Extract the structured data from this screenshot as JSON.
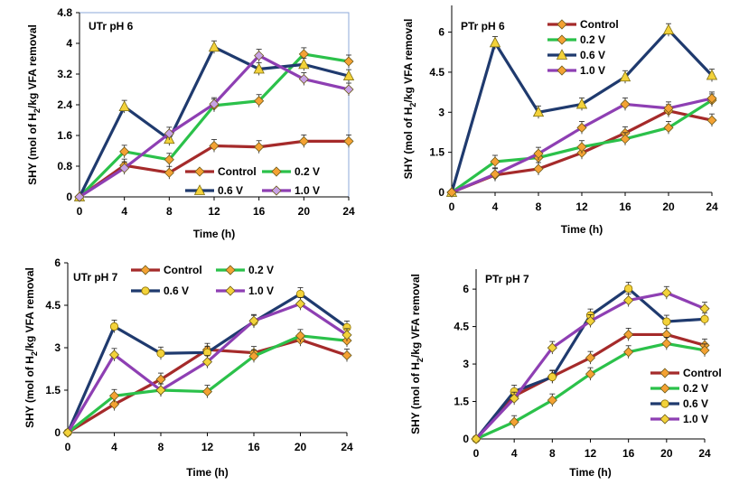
{
  "colors": {
    "Control": "#A52A2A",
    "0.2 V": "#2BC14A",
    "0.6 V": "#1F3A6E",
    "1.0 V": "#8E3FB3",
    "marker_orange": "#F4A233",
    "marker_yellow": "#F3D23A",
    "marker_violet": "#C7A2E6"
  },
  "chart_data": [
    {
      "type": "line",
      "title": "UTr pH 6",
      "xlabel": "Time (h)",
      "ylabel": "SHY (mol of H2/kg VFA removal",
      "x": [
        0,
        4,
        8,
        12,
        16,
        20,
        24
      ],
      "xticks": [
        "0",
        "4",
        "8",
        "12",
        "16",
        "20",
        "24"
      ],
      "ylim": [
        0,
        4.8
      ],
      "yticks": [
        "0",
        "0.8",
        "1.6",
        "2.4",
        "3.2",
        "4",
        "4.8"
      ],
      "legend_position": "bottom-right",
      "series": [
        {
          "name": "Control",
          "values": [
            0,
            0.82,
            0.63,
            1.33,
            1.3,
            1.45,
            1.45
          ]
        },
        {
          "name": "0.2 V",
          "values": [
            0,
            1.18,
            0.97,
            2.38,
            2.5,
            3.72,
            3.53
          ]
        },
        {
          "name": "0.6 V",
          "values": [
            0,
            2.35,
            1.5,
            3.9,
            3.33,
            3.45,
            3.15
          ]
        },
        {
          "name": "1.0 V",
          "values": [
            0,
            0.75,
            1.65,
            2.42,
            3.68,
            3.07,
            2.8
          ]
        }
      ]
    },
    {
      "type": "line",
      "title": "PTr pH 6",
      "xlabel": "Time (h)",
      "ylabel": "SHY (mol of H2/kg VFA removal",
      "x": [
        0,
        4,
        8,
        12,
        16,
        20,
        24
      ],
      "xticks": [
        "0",
        "4",
        "8",
        "12",
        "16",
        "20",
        "24"
      ],
      "ylim": [
        0,
        7
      ],
      "yticks": [
        "0",
        "1.5",
        "3",
        "4.5",
        "6"
      ],
      "legend_position": "top-right",
      "series": [
        {
          "name": "Control",
          "values": [
            0,
            0.65,
            0.88,
            1.48,
            2.22,
            3.05,
            2.7
          ]
        },
        {
          "name": "0.2 V",
          "values": [
            0,
            1.15,
            1.3,
            1.7,
            2.0,
            2.42,
            3.45
          ]
        },
        {
          "name": "0.6 V",
          "values": [
            0,
            5.6,
            3.0,
            3.3,
            4.32,
            6.08,
            4.38
          ]
        },
        {
          "name": "1.0 V",
          "values": [
            0,
            0.68,
            1.45,
            2.42,
            3.3,
            3.15,
            3.52
          ]
        }
      ]
    },
    {
      "type": "line",
      "title": "UTr pH 7",
      "xlabel": "Time (h)",
      "ylabel": "SHY (mol of H2/kg VFA removal",
      "x": [
        0,
        4,
        8,
        12,
        16,
        20,
        24
      ],
      "xticks": [
        "0",
        "4",
        "8",
        "12",
        "16",
        "20",
        "24"
      ],
      "ylim": [
        0,
        6
      ],
      "yticks": [
        "0",
        "1.5",
        "3",
        "4.5",
        "6"
      ],
      "legend_position": "top",
      "series": [
        {
          "name": "Control",
          "values": [
            0,
            1.0,
            1.88,
            2.93,
            2.82,
            3.28,
            2.73
          ]
        },
        {
          "name": "0.2 V",
          "values": [
            0,
            1.3,
            1.5,
            1.45,
            2.7,
            3.42,
            3.25
          ]
        },
        {
          "name": "0.6 V",
          "values": [
            0,
            3.75,
            2.8,
            2.83,
            3.92,
            4.9,
            3.72
          ]
        },
        {
          "name": "1.0 V",
          "values": [
            0,
            2.75,
            1.5,
            2.5,
            3.95,
            4.55,
            3.45
          ]
        }
      ]
    },
    {
      "type": "line",
      "title": "PTr pH 7",
      "xlabel": "Time (h)",
      "ylabel": "SHY (mol of H2/kg VFA removal",
      "x": [
        0,
        4,
        8,
        12,
        16,
        20,
        24
      ],
      "xticks": [
        "0",
        "4",
        "8",
        "12",
        "16",
        "20",
        "24"
      ],
      "ylim": [
        0,
        6.8
      ],
      "yticks": [
        "0",
        "1.5",
        "3",
        "4.5",
        "6"
      ],
      "legend_position": "bottom-right",
      "series": [
        {
          "name": "Control",
          "values": [
            0,
            1.72,
            2.5,
            3.25,
            4.18,
            4.18,
            3.75
          ]
        },
        {
          "name": "0.2 V",
          "values": [
            0,
            0.68,
            1.55,
            2.6,
            3.48,
            3.82,
            3.55
          ]
        },
        {
          "name": "0.6 V",
          "values": [
            0,
            1.9,
            2.48,
            4.95,
            6.02,
            4.7,
            4.8
          ]
        },
        {
          "name": "1.0 V",
          "values": [
            0,
            1.62,
            3.65,
            4.72,
            5.55,
            5.85,
            5.22
          ]
        }
      ]
    }
  ]
}
